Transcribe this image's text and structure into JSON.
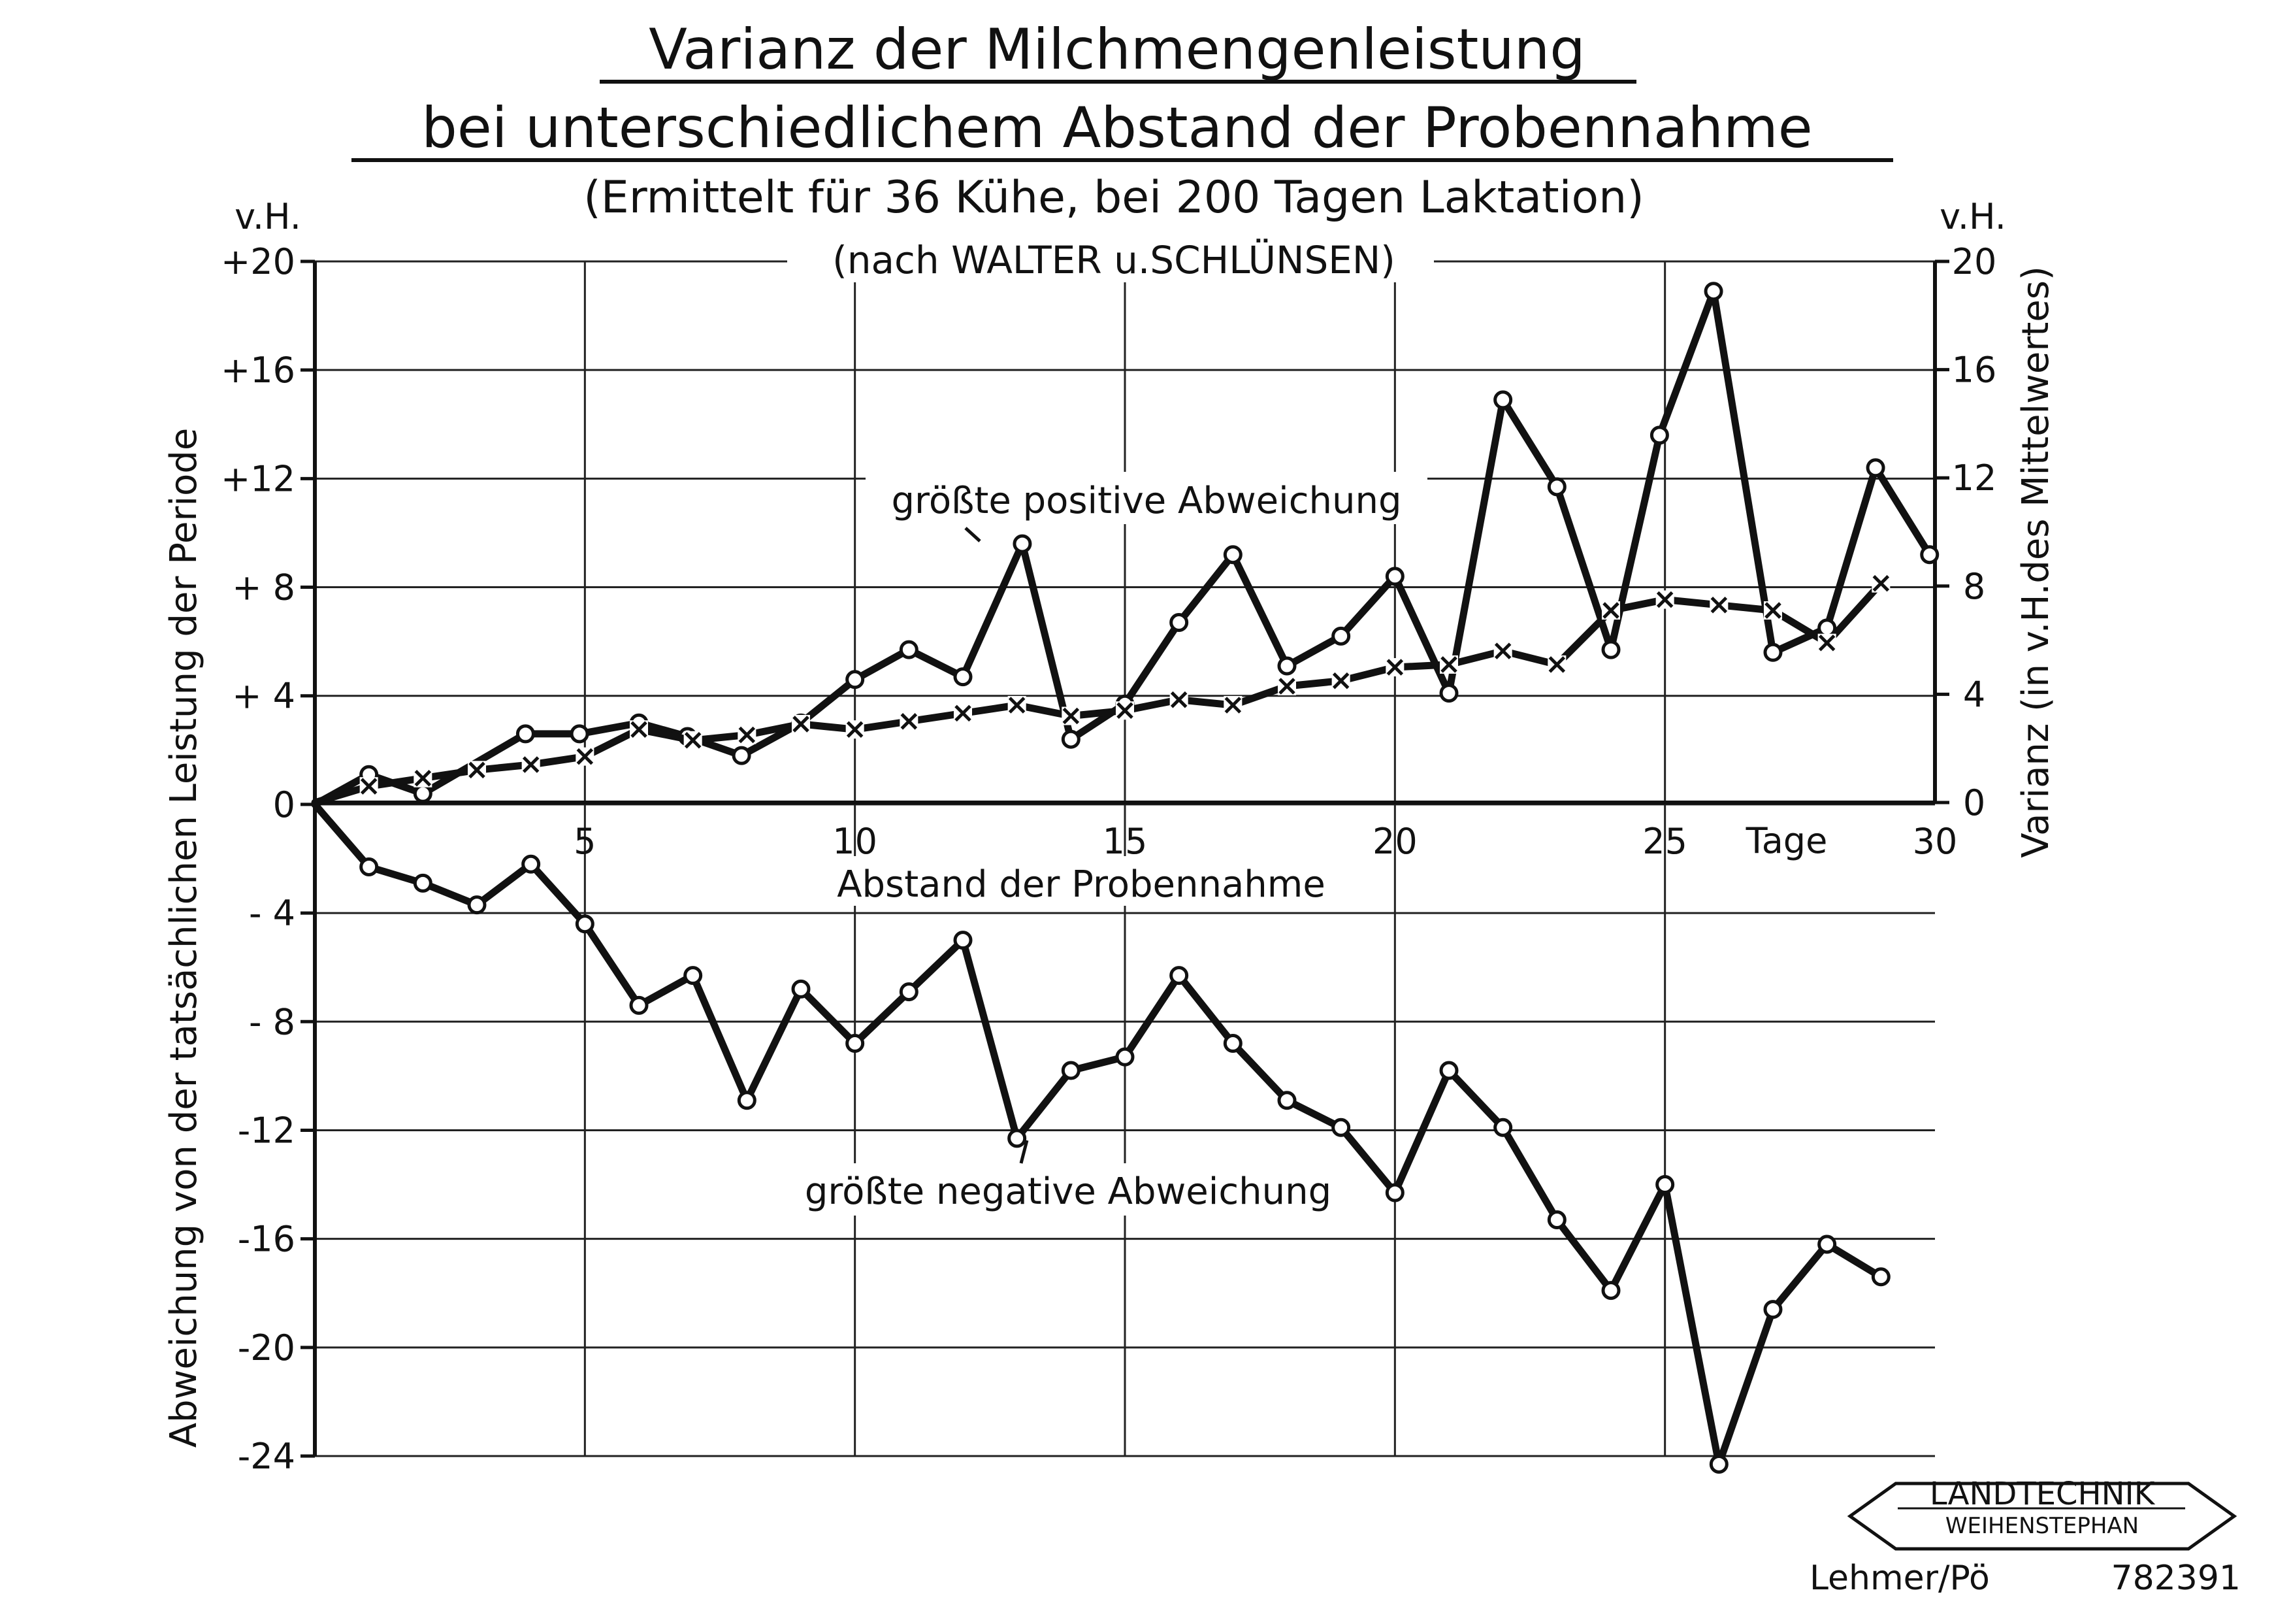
{
  "header": {
    "title_line1": "Varianz der Milchmengenleistung",
    "title_line2": "bei unterschiedlichem Abstand der Probennahme",
    "subtitle": "(Ermittelt für 36 Kühe, bei 200 Tagen Laktation)",
    "source": "(nach WALTER u.SCHLÜNSEN)"
  },
  "left_axis": {
    "unit": "v.H.",
    "label": "Abweichung von der tatsächlichen Leistung der Periode",
    "ticks": [
      {
        "value": 20,
        "label": "+20"
      },
      {
        "value": 16,
        "label": "+16"
      },
      {
        "value": 12,
        "label": "+12"
      },
      {
        "value": 8,
        "label": "+ 8"
      },
      {
        "value": 4,
        "label": "+ 4"
      },
      {
        "value": 0,
        "label": "0"
      },
      {
        "value": -4,
        "label": "- 4"
      },
      {
        "value": -8,
        "label": "- 8"
      },
      {
        "value": -12,
        "label": "-12"
      },
      {
        "value": -16,
        "label": "-16"
      },
      {
        "value": -20,
        "label": "-20"
      },
      {
        "value": -24,
        "label": "-24"
      }
    ]
  },
  "right_axis": {
    "unit": "v.H.",
    "label": "Varianz (in v.H.des Mittelwertes)",
    "ticks": [
      {
        "value": 20,
        "label": "20"
      },
      {
        "value": 16,
        "label": "16"
      },
      {
        "value": 12,
        "label": "12"
      },
      {
        "value": 8,
        "label": "8"
      },
      {
        "value": 4,
        "label": "4"
      },
      {
        "value": 0,
        "label": "0"
      }
    ]
  },
  "x_axis": {
    "label": "Abstand der Probennahme",
    "unit": "Tage",
    "ticks": [
      {
        "value": 5,
        "label": "5"
      },
      {
        "value": 10,
        "label": "10"
      },
      {
        "value": 15,
        "label": "15"
      },
      {
        "value": 20,
        "label": "20"
      },
      {
        "value": 25,
        "label": "25"
      },
      {
        "value": 30,
        "label": "30"
      }
    ]
  },
  "annotations": {
    "positive": "größte positive Abweichung",
    "negative": "größte negative Abweichung"
  },
  "logo": {
    "line1": "LANDTECHNIK",
    "line2": "WEIHENSTEPHAN"
  },
  "footer": {
    "author": "Lehmer/Pö",
    "number": "782391"
  },
  "chart_data": {
    "type": "line",
    "title": "Varianz der Milchmengenleistung bei unterschiedlichem Abstand der Probennahme",
    "xlabel": "Abstand der Probennahme",
    "ylabel": "Abweichung von der tatsächlichen Leistung der Periode",
    "y2label": "Varianz (in v.H.des Mittelwertes)",
    "xlim": [
      0,
      30
    ],
    "ylim": [
      -24,
      20
    ],
    "y2lim": [
      0,
      20
    ],
    "grid": true,
    "x": [
      0,
      1,
      2,
      3,
      4,
      5,
      6,
      7,
      8,
      9,
      10,
      11,
      12,
      13,
      14,
      15,
      16,
      17,
      18,
      19,
      20,
      21,
      22,
      23,
      24,
      25,
      26,
      27,
      28,
      29,
      30
    ],
    "series": [
      {
        "name": "größte positive Abweichung",
        "marker": "circle",
        "axis": "left",
        "values": [
          0,
          1.1,
          0.4,
          2.6,
          2.6,
          3.0,
          2.5,
          1.8,
          3.0,
          4.6,
          5.7,
          4.7,
          9.6,
          2.4,
          3.7,
          6.7,
          9.2,
          5.1,
          6.2,
          8.4,
          4.1,
          14.9,
          11.7,
          5.7,
          13.6,
          18.9,
          5.6,
          6.5,
          12.4,
          9.2,
          null
        ],
        "x_override": [
          0,
          1,
          2,
          3.9,
          4.9,
          6,
          6.9,
          7.9,
          9,
          10,
          11,
          12,
          13.1,
          14,
          15,
          16,
          17,
          18,
          19,
          20,
          21,
          22,
          23,
          24,
          24.9,
          25.9,
          27,
          28,
          28.9,
          29.9,
          null
        ]
      },
      {
        "name": "Varianz",
        "marker": "cross",
        "axis": "right",
        "values": [
          0,
          0.6,
          0.9,
          1.2,
          1.4,
          1.7,
          2.7,
          2.3,
          2.5,
          2.9,
          2.7,
          3.0,
          3.3,
          3.6,
          3.2,
          3.4,
          3.8,
          3.6,
          4.3,
          4.5,
          5.0,
          5.1,
          5.6,
          5.1,
          7.1,
          7.5,
          7.3,
          7.1,
          5.9,
          8.1,
          null
        ],
        "x_override": [
          0,
          1,
          2,
          3,
          4,
          5,
          6,
          7,
          8,
          9,
          10,
          11,
          12,
          13,
          14,
          15,
          16,
          17,
          18,
          19,
          20,
          21,
          22,
          23,
          24,
          25,
          26,
          27,
          28,
          29,
          null
        ]
      },
      {
        "name": "größte negative Abweichung",
        "marker": "circle",
        "axis": "left",
        "values": [
          0,
          -2.3,
          -2.9,
          -3.7,
          -2.2,
          -4.4,
          -7.4,
          -6.3,
          -10.9,
          -6.8,
          -8.8,
          -6.9,
          -5.0,
          -12.3,
          -9.8,
          -9.3,
          -6.3,
          -8.8,
          -10.9,
          -11.9,
          -14.3,
          -9.8,
          -11.9,
          -15.3,
          -17.9,
          -14.0,
          -24.3,
          -18.6,
          -16.2,
          -17.4,
          null
        ],
        "x_override": [
          0,
          1,
          2,
          3,
          4,
          5,
          6,
          7,
          8,
          9,
          10,
          11,
          12,
          13,
          14,
          15,
          16,
          17,
          18,
          19,
          20,
          21,
          22,
          23,
          24,
          25,
          26,
          27,
          28,
          29,
          null
        ]
      }
    ]
  }
}
